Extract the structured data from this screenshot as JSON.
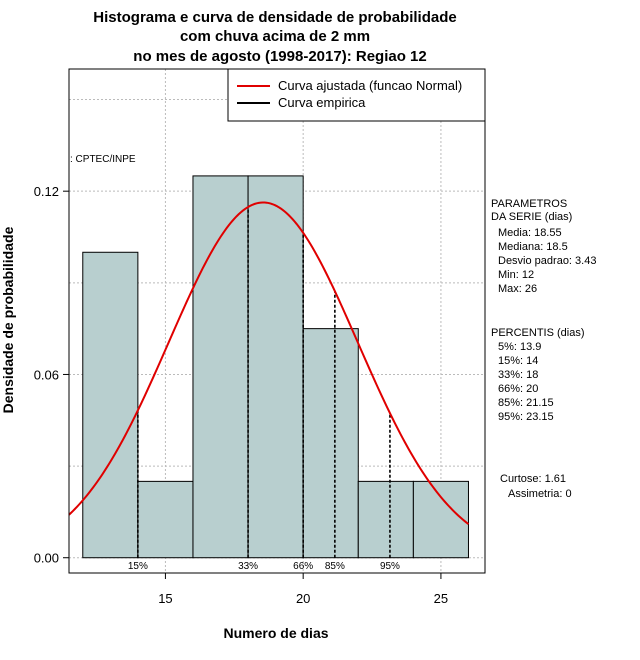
{
  "chart_data": {
    "type": "histogram",
    "title_lines": [
      "Histograma e curva de densidade de probabilidade",
      "com chuva acima de 2 mm",
      "no mes de agosto (1998-2017): Regiao 12"
    ],
    "xlabel": "Numero de dias",
    "ylabel": "Densidade de probabilidade",
    "xlim": [
      11.5,
      26.6
    ],
    "ylim": [
      -0.005,
      0.16
    ],
    "x_ticks": [
      15,
      20,
      25
    ],
    "y_ticks": [
      0.0,
      0.06,
      0.12
    ],
    "y_tick_labels": [
      "0.00",
      "0.06",
      "0.12"
    ],
    "grid": true,
    "bins": [
      {
        "x0": 12,
        "x1": 14,
        "density": 0.1
      },
      {
        "x0": 14,
        "x1": 16,
        "density": 0.025
      },
      {
        "x0": 16,
        "x1": 18,
        "density": 0.125
      },
      {
        "x0": 18,
        "x1": 20,
        "density": 0.125
      },
      {
        "x0": 20,
        "x1": 22,
        "density": 0.075
      },
      {
        "x0": 22,
        "x1": 24,
        "density": 0.025
      },
      {
        "x0": 24,
        "x1": 26,
        "density": 0.025
      }
    ],
    "bar_color": "#b8cfcf",
    "curve_color": "#e00000",
    "normal_fit": {
      "mean": 18.55,
      "sd": 3.43
    },
    "percentiles": [
      {
        "label": "15%",
        "x": 14
      },
      {
        "label": "33%",
        "x": 18
      },
      {
        "label": "66%",
        "x": 20
      },
      {
        "label": "85%",
        "x": 21.15
      },
      {
        "label": "95%",
        "x": 23.15
      }
    ],
    "legend": {
      "position": "top-right",
      "entries": [
        {
          "label": "Curva ajustada (funcao Normal)",
          "color": "#e00000"
        },
        {
          "label": "Curva empirica",
          "color": "#000000"
        }
      ]
    },
    "source_label": ": CPTEC/INPE",
    "side_panel": {
      "params_title": [
        "PARAMETROS",
        "DA SERIE (dias)"
      ],
      "params": [
        "Media: 18.55",
        "Mediana: 18.5",
        "Desvio padrao: 3.43",
        "Min: 12",
        "Max: 26"
      ],
      "percentis_title": "PERCENTIS (dias)",
      "percentis": [
        "5%: 13.9",
        "15%: 14",
        "33%: 18",
        "66%: 20",
        "85%: 21.15",
        "95%: 23.15"
      ],
      "stats": [
        "Curtose: 1.61",
        "Assimetria: 0"
      ]
    }
  }
}
